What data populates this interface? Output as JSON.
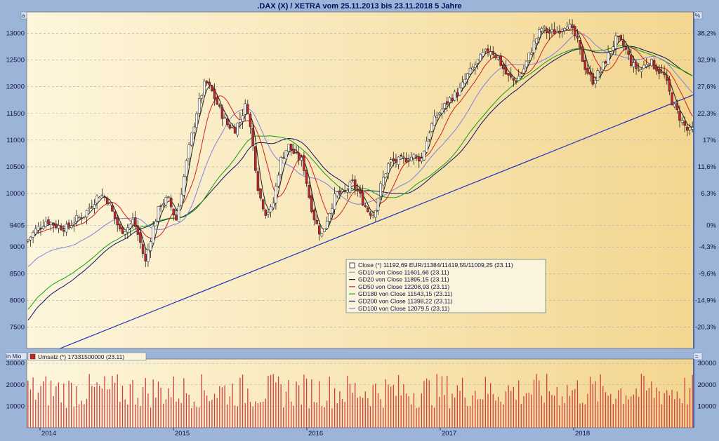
{
  "title": ".DAX (X) / XETRA vom 25.11.2013 bis 23.11.2018 5 Jahre",
  "corner_left": "a",
  "corner_right": "%",
  "volume_corner_left": "in Mio",
  "volume_corner_right": "=",
  "colors": {
    "frame": "#9cb4d8",
    "panel_left": "#fdf6dc",
    "panel_right": "#f3d68f",
    "up": "#ffffff",
    "down": "#c1272d",
    "gd10": "#b0a0a0",
    "gd20": "#202020",
    "gd50": "#d02020",
    "gd180": "#10a010",
    "gd200": "#101060",
    "gd100": "#8080e0",
    "trend": "#2030c0",
    "volume": "#d04040"
  },
  "chart_data": [
    {
      "type": "candlestick",
      "title": ".DAX (X) / XETRA vom 25.11.2013 bis 23.11.2018 5 Jahre",
      "x_range": [
        2013.9,
        2018.9
      ],
      "ylim": [
        7100,
        13400
      ],
      "y_ticks": [
        7500,
        8000,
        8500,
        9000,
        9405,
        10000,
        10500,
        11000,
        11500,
        12000,
        12500,
        13000
      ],
      "y2_ticks": [
        "38,2%",
        "32,9%",
        "27,6%",
        "22,3%",
        "17%",
        "11,6%",
        "6,3%",
        "0%",
        "-4,3%",
        "-9,6%",
        "-14,9%",
        "-20,3%"
      ],
      "x_ticks": [
        "2014",
        "2015",
        "2016",
        "2017",
        "2018"
      ],
      "close_path": [
        [
          2013.9,
          9100
        ],
        [
          2013.96,
          9300
        ],
        [
          2014.05,
          9500
        ],
        [
          2014.12,
          9400
        ],
        [
          2014.2,
          9350
        ],
        [
          2014.26,
          9500
        ],
        [
          2014.33,
          9600
        ],
        [
          2014.4,
          9850
        ],
        [
          2014.45,
          10000
        ],
        [
          2014.5,
          9900
        ],
        [
          2014.55,
          9600
        ],
        [
          2014.6,
          9300
        ],
        [
          2014.65,
          9350
        ],
        [
          2014.7,
          9500
        ],
        [
          2014.75,
          9100
        ],
        [
          2014.79,
          8700
        ],
        [
          2014.84,
          9300
        ],
        [
          2014.9,
          9800
        ],
        [
          2014.96,
          9900
        ],
        [
          2015.02,
          9500
        ],
        [
          2015.07,
          10200
        ],
        [
          2015.12,
          10900
        ],
        [
          2015.18,
          11600
        ],
        [
          2015.24,
          12100
        ],
        [
          2015.29,
          11900
        ],
        [
          2015.34,
          11600
        ],
        [
          2015.4,
          11300
        ],
        [
          2015.46,
          11200
        ],
        [
          2015.5,
          11400
        ],
        [
          2015.55,
          11700
        ],
        [
          2015.6,
          10800
        ],
        [
          2015.64,
          10000
        ],
        [
          2015.69,
          9650
        ],
        [
          2015.74,
          9700
        ],
        [
          2015.8,
          10600
        ],
        [
          2015.86,
          10900
        ],
        [
          2015.92,
          10700
        ],
        [
          2015.97,
          10600
        ],
        [
          2016.02,
          9900
        ],
        [
          2016.06,
          9500
        ],
        [
          2016.11,
          9200
        ],
        [
          2016.16,
          9600
        ],
        [
          2016.22,
          10000
        ],
        [
          2016.28,
          10000
        ],
        [
          2016.34,
          10200
        ],
        [
          2016.39,
          10000
        ],
        [
          2016.45,
          9700
        ],
        [
          2016.5,
          9600
        ],
        [
          2016.56,
          10200
        ],
        [
          2016.62,
          10600
        ],
        [
          2016.68,
          10600
        ],
        [
          2016.74,
          10650
        ],
        [
          2016.8,
          10700
        ],
        [
          2016.86,
          10650
        ],
        [
          2016.92,
          11200
        ],
        [
          2016.97,
          11450
        ],
        [
          2017.02,
          11600
        ],
        [
          2017.08,
          11800
        ],
        [
          2017.14,
          11900
        ],
        [
          2017.2,
          12200
        ],
        [
          2017.26,
          12400
        ],
        [
          2017.32,
          12600
        ],
        [
          2017.38,
          12700
        ],
        [
          2017.44,
          12500
        ],
        [
          2017.5,
          12200
        ],
        [
          2017.56,
          12100
        ],
        [
          2017.62,
          12300
        ],
        [
          2017.7,
          12800
        ],
        [
          2017.76,
          13100
        ],
        [
          2017.82,
          13000
        ],
        [
          2017.88,
          13050
        ],
        [
          2017.95,
          13200
        ],
        [
          2018.02,
          12900
        ],
        [
          2018.08,
          12400
        ],
        [
          2018.14,
          12100
        ],
        [
          2018.2,
          12300
        ],
        [
          2018.26,
          12600
        ],
        [
          2018.32,
          12900
        ],
        [
          2018.38,
          12750
        ],
        [
          2018.44,
          12400
        ],
        [
          2018.5,
          12300
        ],
        [
          2018.56,
          12500
        ],
        [
          2018.62,
          12350
        ],
        [
          2018.68,
          12200
        ],
        [
          2018.74,
          11700
        ],
        [
          2018.8,
          11400
        ],
        [
          2018.86,
          11150
        ],
        [
          2018.89,
          11192.69
        ]
      ],
      "series": [
        {
          "name": "Close (*) 11192,69 EUR/11384/11419,55/11009,25 (23.11)",
          "key": "close",
          "legend_type": "box"
        },
        {
          "name": "GD10 von Close 11601,66 (23.11)",
          "key": "gd10",
          "window": 1
        },
        {
          "name": "GD20 von Close 11895,15 (23.11)",
          "key": "gd20",
          "window": 2
        },
        {
          "name": "GD50 von Close 12208,93 (23.11)",
          "key": "gd50",
          "window": 5
        },
        {
          "name": "GD180 von Close 11543,15 (23.11)",
          "key": "gd180",
          "window": 20
        },
        {
          "name": "GD200 von Close 11398,22 (23.11)",
          "key": "gd200",
          "window": 23
        },
        {
          "name": "GD100 von Close 12079,5 (23.11)",
          "key": "gd100",
          "window": 11
        }
      ],
      "trendline": [
        [
          2014.15,
          7100
        ],
        [
          2018.9,
          11850
        ]
      ]
    },
    {
      "type": "bar",
      "title": "",
      "legend": "Umsatz (*) 17331500000 (23.11)",
      "ylim": [
        0,
        32000
      ],
      "y_ticks": [
        10000,
        20000,
        30000
      ],
      "x_range": [
        2013.9,
        2018.9
      ],
      "base": 18000
    }
  ]
}
